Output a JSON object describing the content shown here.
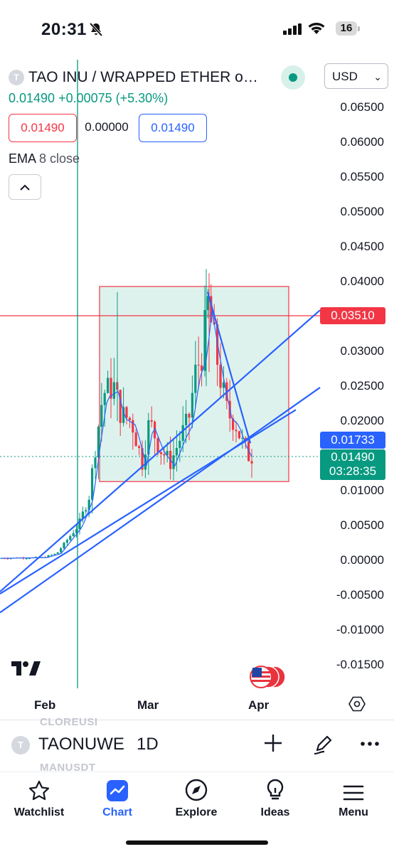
{
  "status_bar": {
    "time": "20:31",
    "battery": "16"
  },
  "symbol": {
    "icon_letter": "T",
    "title": "TAO INU / WRAPPED ETHER o…",
    "currency": "USD"
  },
  "price_line": "0.01490 +0.00075 (+5.30%)",
  "ohlc_boxes": {
    "bid": "0.01490",
    "spread": "0.00000",
    "ask": "0.01490"
  },
  "indicator": {
    "name": "EMA",
    "params": "8 close"
  },
  "axis_ticks": [
    "0.06500",
    "0.06000",
    "0.05500",
    "0.05000",
    "0.04500",
    "0.04000",
    "0.03000",
    "0.02500",
    "0.02000",
    "0.01000",
    "0.00500",
    "0.00000",
    "-0.00500",
    "-0.01000",
    "-0.01500"
  ],
  "badges": {
    "level_red": "0.03510",
    "level_blue": "0.01733",
    "last_price": "0.01490",
    "countdown": "03:28:35"
  },
  "time_axis": [
    "Feb",
    "Mar",
    "Apr"
  ],
  "toolbar": {
    "ghost_above": "CLOREUSI",
    "symbol": "TAONUWE",
    "interval": "1D",
    "ghost_below": "MANUSDT"
  },
  "nav": [
    {
      "label": "Watchlist",
      "icon": "star-icon"
    },
    {
      "label": "Chart",
      "icon": "chart-icon",
      "active": true
    },
    {
      "label": "Explore",
      "icon": "compass-icon"
    },
    {
      "label": "Ideas",
      "icon": "lightbulb-icon"
    },
    {
      "label": "Menu",
      "icon": "hamburger-icon"
    }
  ],
  "colors": {
    "up": "#089981",
    "down": "#f23645",
    "accent": "#2962ff",
    "box_fill": "#d8f0ea"
  },
  "chart_data": {
    "type": "candlestick",
    "y_range": [
      -0.015,
      0.065
    ],
    "x_labels": [
      "Feb",
      "Mar",
      "Apr"
    ],
    "reference_levels": [
      0.0351,
      0.01733,
      0.0149
    ],
    "last_close": 0.0149,
    "range_box": {
      "low": 0.0113,
      "high": 0.0393
    }
  }
}
